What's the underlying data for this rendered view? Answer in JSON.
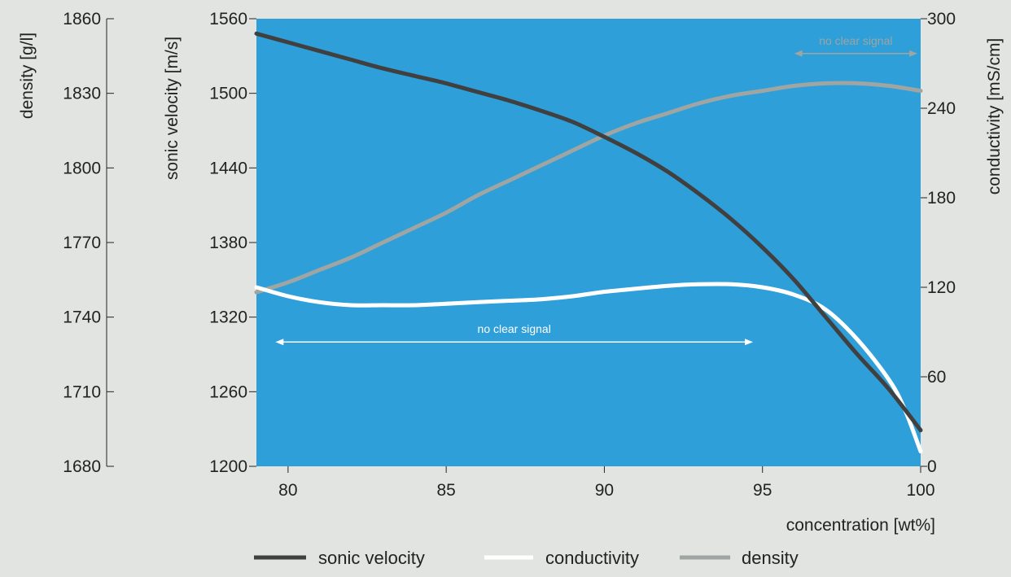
{
  "chart_data": {
    "type": "line",
    "plot_background": "#2e9fd9",
    "x_axis": {
      "label": "concentration [wt%]",
      "range": [
        79,
        100
      ],
      "ticks": [
        80,
        85,
        90,
        95,
        100
      ]
    },
    "axes": {
      "density": {
        "label": "density [g/l]",
        "range": [
          1680,
          1860
        ],
        "ticks": [
          1680,
          1710,
          1740,
          1770,
          1800,
          1830,
          1860
        ]
      },
      "sonic_velocity": {
        "label": "sonic velocity [m/s]",
        "range": [
          1200,
          1560
        ],
        "ticks": [
          1200,
          1260,
          1320,
          1380,
          1440,
          1500,
          1560
        ]
      },
      "conductivity": {
        "label": "conductivity [mS/cm]",
        "range": [
          0,
          300
        ],
        "ticks": [
          0,
          60,
          120,
          180,
          240,
          300
        ]
      }
    },
    "series": [
      {
        "name": "sonic velocity",
        "axis": "sonic_velocity",
        "color": "#404040",
        "x": [
          79,
          80,
          81,
          82,
          83,
          84,
          85,
          86,
          87,
          88,
          89,
          90,
          91,
          92,
          93,
          94,
          95,
          96,
          97,
          98,
          99,
          100
        ],
        "y": [
          1548,
          1541,
          1534,
          1527,
          1520,
          1514,
          1508,
          1501,
          1494,
          1486,
          1477,
          1465,
          1452,
          1437,
          1419,
          1399,
          1376,
          1350,
          1320,
          1290,
          1262,
          1229
        ]
      },
      {
        "name": "conductivity",
        "axis": "conductivity",
        "color": "#ffffff",
        "x": [
          79,
          80,
          81,
          82,
          83,
          84,
          85,
          86,
          87,
          88,
          89,
          90,
          91,
          92,
          93,
          94,
          95,
          96,
          97,
          98,
          99,
          99.5,
          100
        ],
        "y": [
          120,
          114,
          110,
          108,
          108,
          108,
          109,
          110,
          111,
          112,
          114,
          117,
          119,
          121,
          122,
          122,
          120,
          115,
          105,
          85,
          58,
          38,
          10
        ]
      },
      {
        "name": "density",
        "axis": "density",
        "color": "#9ea5a2",
        "x": [
          79,
          80,
          81,
          82,
          83,
          84,
          85,
          86,
          87,
          88,
          89,
          90,
          91,
          92,
          93,
          94,
          95,
          96,
          97,
          98,
          99,
          100
        ],
        "y": [
          1750,
          1754,
          1759,
          1764,
          1770,
          1776,
          1782,
          1789,
          1795,
          1801,
          1807,
          1813,
          1818,
          1822,
          1826,
          1829,
          1831,
          1833,
          1834,
          1834,
          1833,
          1831
        ]
      }
    ],
    "annotations": [
      {
        "text": "no clear signal",
        "from_x": 79.6,
        "to_x": 94.7,
        "y_axis": "sonic_velocity",
        "y": 1300,
        "color": "#ffffff"
      },
      {
        "text": "no clear signal",
        "from_x": 96,
        "to_x": 99.9,
        "y_axis": "sonic_velocity",
        "y": 1532,
        "color": "#9ea5a2"
      }
    ],
    "legend": {
      "position": "bottom-center",
      "items": [
        {
          "label": "sonic velocity",
          "color": "#404040"
        },
        {
          "label": "conductivity",
          "color": "#ffffff"
        },
        {
          "label": "density",
          "color": "#9ea5a2"
        }
      ]
    }
  }
}
